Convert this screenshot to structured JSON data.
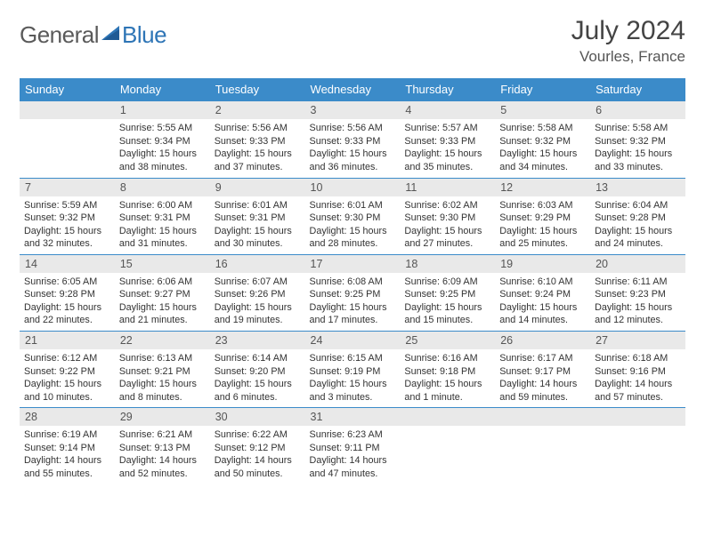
{
  "brand": {
    "part1": "General",
    "part2": "Blue"
  },
  "title": "July 2024",
  "location": "Vourles, France",
  "weekdays": [
    "Sunday",
    "Monday",
    "Tuesday",
    "Wednesday",
    "Thursday",
    "Friday",
    "Saturday"
  ],
  "colors": {
    "header_bg": "#3b8bc9",
    "header_text": "#ffffff",
    "daynum_bg": "#e9e9e9",
    "rule": "#3b8bc9",
    "text": "#333333",
    "brand_gray": "#5a5a5a",
    "brand_blue": "#2e75b6"
  },
  "weeks": [
    [
      null,
      {
        "n": "1",
        "sr": "5:55 AM",
        "ss": "9:34 PM",
        "dl": "15 hours and 38 minutes."
      },
      {
        "n": "2",
        "sr": "5:56 AM",
        "ss": "9:33 PM",
        "dl": "15 hours and 37 minutes."
      },
      {
        "n": "3",
        "sr": "5:56 AM",
        "ss": "9:33 PM",
        "dl": "15 hours and 36 minutes."
      },
      {
        "n": "4",
        "sr": "5:57 AM",
        "ss": "9:33 PM",
        "dl": "15 hours and 35 minutes."
      },
      {
        "n": "5",
        "sr": "5:58 AM",
        "ss": "9:32 PM",
        "dl": "15 hours and 34 minutes."
      },
      {
        "n": "6",
        "sr": "5:58 AM",
        "ss": "9:32 PM",
        "dl": "15 hours and 33 minutes."
      }
    ],
    [
      {
        "n": "7",
        "sr": "5:59 AM",
        "ss": "9:32 PM",
        "dl": "15 hours and 32 minutes."
      },
      {
        "n": "8",
        "sr": "6:00 AM",
        "ss": "9:31 PM",
        "dl": "15 hours and 31 minutes."
      },
      {
        "n": "9",
        "sr": "6:01 AM",
        "ss": "9:31 PM",
        "dl": "15 hours and 30 minutes."
      },
      {
        "n": "10",
        "sr": "6:01 AM",
        "ss": "9:30 PM",
        "dl": "15 hours and 28 minutes."
      },
      {
        "n": "11",
        "sr": "6:02 AM",
        "ss": "9:30 PM",
        "dl": "15 hours and 27 minutes."
      },
      {
        "n": "12",
        "sr": "6:03 AM",
        "ss": "9:29 PM",
        "dl": "15 hours and 25 minutes."
      },
      {
        "n": "13",
        "sr": "6:04 AM",
        "ss": "9:28 PM",
        "dl": "15 hours and 24 minutes."
      }
    ],
    [
      {
        "n": "14",
        "sr": "6:05 AM",
        "ss": "9:28 PM",
        "dl": "15 hours and 22 minutes."
      },
      {
        "n": "15",
        "sr": "6:06 AM",
        "ss": "9:27 PM",
        "dl": "15 hours and 21 minutes."
      },
      {
        "n": "16",
        "sr": "6:07 AM",
        "ss": "9:26 PM",
        "dl": "15 hours and 19 minutes."
      },
      {
        "n": "17",
        "sr": "6:08 AM",
        "ss": "9:25 PM",
        "dl": "15 hours and 17 minutes."
      },
      {
        "n": "18",
        "sr": "6:09 AM",
        "ss": "9:25 PM",
        "dl": "15 hours and 15 minutes."
      },
      {
        "n": "19",
        "sr": "6:10 AM",
        "ss": "9:24 PM",
        "dl": "15 hours and 14 minutes."
      },
      {
        "n": "20",
        "sr": "6:11 AM",
        "ss": "9:23 PM",
        "dl": "15 hours and 12 minutes."
      }
    ],
    [
      {
        "n": "21",
        "sr": "6:12 AM",
        "ss": "9:22 PM",
        "dl": "15 hours and 10 minutes."
      },
      {
        "n": "22",
        "sr": "6:13 AM",
        "ss": "9:21 PM",
        "dl": "15 hours and 8 minutes."
      },
      {
        "n": "23",
        "sr": "6:14 AM",
        "ss": "9:20 PM",
        "dl": "15 hours and 6 minutes."
      },
      {
        "n": "24",
        "sr": "6:15 AM",
        "ss": "9:19 PM",
        "dl": "15 hours and 3 minutes."
      },
      {
        "n": "25",
        "sr": "6:16 AM",
        "ss": "9:18 PM",
        "dl": "15 hours and 1 minute."
      },
      {
        "n": "26",
        "sr": "6:17 AM",
        "ss": "9:17 PM",
        "dl": "14 hours and 59 minutes."
      },
      {
        "n": "27",
        "sr": "6:18 AM",
        "ss": "9:16 PM",
        "dl": "14 hours and 57 minutes."
      }
    ],
    [
      {
        "n": "28",
        "sr": "6:19 AM",
        "ss": "9:14 PM",
        "dl": "14 hours and 55 minutes."
      },
      {
        "n": "29",
        "sr": "6:21 AM",
        "ss": "9:13 PM",
        "dl": "14 hours and 52 minutes."
      },
      {
        "n": "30",
        "sr": "6:22 AM",
        "ss": "9:12 PM",
        "dl": "14 hours and 50 minutes."
      },
      {
        "n": "31",
        "sr": "6:23 AM",
        "ss": "9:11 PM",
        "dl": "14 hours and 47 minutes."
      },
      null,
      null,
      null
    ]
  ],
  "labels": {
    "sunrise": "Sunrise:",
    "sunset": "Sunset:",
    "daylight": "Daylight:"
  }
}
